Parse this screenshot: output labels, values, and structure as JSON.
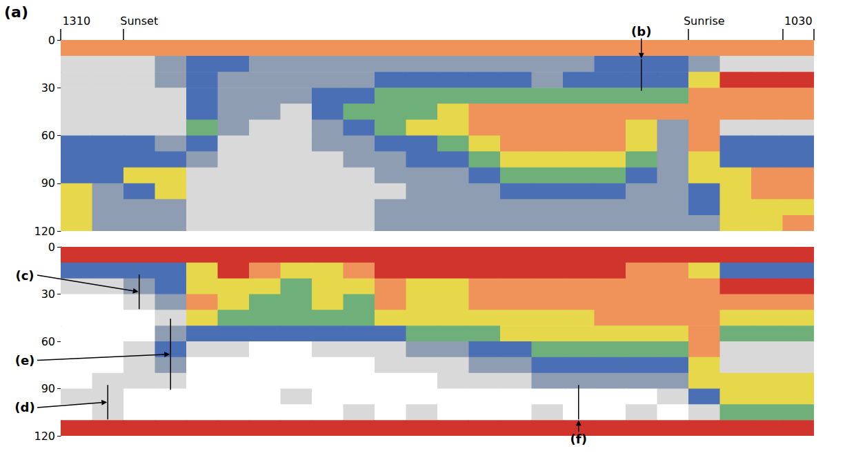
{
  "chart_data": [
    {
      "type": "heatmap",
      "panel_label": "(a)",
      "tick_labels": true,
      "categories": [
        "1310",
        null,
        "Sunset",
        null,
        null,
        null,
        null,
        null,
        null,
        null,
        null,
        null,
        null,
        null,
        null,
        null,
        null,
        null,
        null,
        null,
        "Sunrise",
        null,
        null,
        "1030"
      ],
      "depth_bins": [
        0,
        10,
        20,
        30,
        40,
        50,
        60,
        70,
        80,
        90,
        100,
        110,
        120
      ],
      "ylim": [
        0,
        120
      ],
      "yticks": [
        0,
        30,
        60,
        90,
        120
      ],
      "cells": [
        [
          6,
          6,
          6,
          6,
          6,
          6,
          6,
          6,
          6,
          6,
          6,
          6,
          6,
          6,
          6,
          6,
          6,
          6,
          6,
          6,
          6,
          6,
          6,
          6
        ],
        [
          1,
          1,
          1,
          2,
          3,
          3,
          2,
          2,
          2,
          2,
          2,
          2,
          2,
          2,
          2,
          2,
          2,
          3,
          3,
          3,
          2,
          1,
          1,
          1
        ],
        [
          1,
          1,
          1,
          2,
          3,
          2,
          2,
          2,
          2,
          2,
          3,
          3,
          3,
          3,
          3,
          2,
          3,
          3,
          3,
          3,
          5,
          7,
          7,
          7
        ],
        [
          1,
          1,
          1,
          1,
          3,
          2,
          2,
          2,
          3,
          3,
          4,
          4,
          4,
          4,
          4,
          4,
          4,
          4,
          4,
          4,
          6,
          6,
          6,
          6
        ],
        [
          1,
          1,
          1,
          1,
          3,
          2,
          2,
          1,
          3,
          4,
          4,
          4,
          5,
          6,
          6,
          6,
          6,
          6,
          6,
          6,
          6,
          6,
          6,
          6
        ],
        [
          1,
          1,
          1,
          1,
          4,
          2,
          1,
          1,
          2,
          3,
          4,
          5,
          5,
          6,
          6,
          6,
          6,
          6,
          5,
          2,
          6,
          1,
          1,
          1
        ],
        [
          3,
          3,
          3,
          2,
          3,
          1,
          1,
          1,
          2,
          2,
          3,
          3,
          4,
          5,
          6,
          6,
          6,
          6,
          5,
          2,
          6,
          3,
          3,
          3
        ],
        [
          3,
          3,
          3,
          3,
          2,
          1,
          1,
          1,
          1,
          2,
          2,
          3,
          3,
          4,
          5,
          5,
          5,
          5,
          4,
          2,
          5,
          3,
          3,
          3
        ],
        [
          3,
          3,
          5,
          5,
          1,
          1,
          1,
          1,
          1,
          1,
          2,
          2,
          2,
          3,
          4,
          4,
          4,
          4,
          3,
          2,
          5,
          5,
          6,
          6
        ],
        [
          5,
          2,
          3,
          5,
          1,
          1,
          1,
          1,
          1,
          1,
          1,
          2,
          2,
          2,
          3,
          3,
          3,
          3,
          2,
          2,
          3,
          5,
          6,
          6
        ],
        [
          5,
          2,
          2,
          2,
          1,
          1,
          1,
          1,
          1,
          1,
          2,
          2,
          2,
          2,
          2,
          2,
          2,
          2,
          2,
          2,
          3,
          5,
          5,
          5
        ],
        [
          5,
          2,
          2,
          2,
          1,
          1,
          1,
          1,
          1,
          1,
          2,
          2,
          2,
          2,
          2,
          2,
          2,
          2,
          2,
          2,
          2,
          5,
          5,
          6
        ]
      ],
      "annotations": [
        {
          "text": "(b)",
          "x": [
            17.7,
            18.0
          ],
          "y": [
            12,
            32
          ]
        }
      ]
    },
    {
      "type": "heatmap",
      "tick_labels": "y",
      "categories": [
        null,
        null,
        null,
        null,
        null,
        null,
        null,
        null,
        null,
        null,
        null,
        null,
        null,
        null,
        null,
        null,
        null,
        null,
        null,
        null,
        null,
        null,
        null,
        null
      ],
      "depth_bins": [
        0,
        10,
        20,
        30,
        40,
        50,
        60,
        70,
        80,
        90,
        100,
        110,
        120
      ],
      "ylim": [
        0,
        120
      ],
      "yticks": [
        0,
        30,
        60,
        90,
        120
      ],
      "cells": [
        [
          7,
          7,
          7,
          7,
          7,
          7,
          7,
          7,
          7,
          7,
          7,
          7,
          7,
          7,
          7,
          7,
          7,
          7,
          7,
          7,
          7,
          7,
          7,
          7
        ],
        [
          3,
          3,
          3,
          3,
          5,
          7,
          6,
          5,
          5,
          6,
          7,
          7,
          7,
          7,
          7,
          7,
          7,
          7,
          6,
          6,
          5,
          3,
          3,
          3
        ],
        [
          1,
          1,
          2,
          3,
          5,
          5,
          5,
          4,
          5,
          5,
          6,
          5,
          5,
          6,
          6,
          6,
          6,
          6,
          6,
          6,
          6,
          7,
          7,
          7
        ],
        [
          0,
          0,
          1,
          2,
          6,
          5,
          4,
          4,
          5,
          4,
          6,
          5,
          5,
          6,
          6,
          6,
          6,
          6,
          6,
          6,
          6,
          6,
          6,
          6
        ],
        [
          0,
          0,
          0,
          1,
          5,
          4,
          4,
          4,
          4,
          4,
          5,
          5,
          5,
          5,
          5,
          5,
          5,
          6,
          6,
          6,
          6,
          5,
          5,
          5
        ],
        [
          0,
          0,
          0,
          2,
          3,
          3,
          3,
          3,
          3,
          3,
          3,
          4,
          4,
          4,
          5,
          5,
          5,
          5,
          5,
          5,
          6,
          4,
          4,
          4
        ],
        [
          0,
          0,
          1,
          3,
          1,
          1,
          0,
          0,
          1,
          1,
          1,
          2,
          2,
          3,
          3,
          4,
          4,
          4,
          4,
          4,
          6,
          1,
          1,
          1
        ],
        [
          0,
          0,
          1,
          2,
          0,
          0,
          0,
          0,
          0,
          0,
          1,
          1,
          1,
          2,
          2,
          3,
          3,
          3,
          3,
          3,
          5,
          1,
          1,
          1
        ],
        [
          0,
          1,
          1,
          1,
          0,
          0,
          0,
          0,
          0,
          0,
          0,
          0,
          1,
          1,
          1,
          2,
          2,
          2,
          2,
          2,
          5,
          5,
          5,
          5
        ],
        [
          1,
          1,
          0,
          0,
          0,
          0,
          0,
          1,
          0,
          0,
          0,
          0,
          0,
          0,
          0,
          0,
          0,
          0,
          0,
          1,
          3,
          5,
          5,
          5
        ],
        [
          0,
          1,
          0,
          0,
          0,
          0,
          0,
          0,
          0,
          1,
          0,
          1,
          0,
          0,
          0,
          1,
          0,
          0,
          1,
          0,
          1,
          4,
          4,
          4
        ],
        [
          7,
          7,
          7,
          7,
          7,
          7,
          7,
          7,
          7,
          7,
          7,
          7,
          7,
          7,
          7,
          7,
          7,
          7,
          7,
          7,
          7,
          7,
          7,
          7
        ]
      ],
      "annotations": [
        {
          "text": "(c)",
          "x": [
            1.96,
            2.25
          ],
          "y": [
            17.5,
            39.5
          ]
        },
        {
          "text": "(e)",
          "x": [
            2.53,
            3.15
          ],
          "y": [
            45.6,
            90.8
          ]
        },
        {
          "text": "(d)",
          "x": [
            0.82,
            1.08
          ],
          "y": [
            87.7,
            109.6
          ]
        },
        {
          "text": "(f)",
          "x": [
            15.74,
            16.03
          ],
          "y": [
            87.7,
            109.6
          ]
        }
      ]
    }
  ]
}
